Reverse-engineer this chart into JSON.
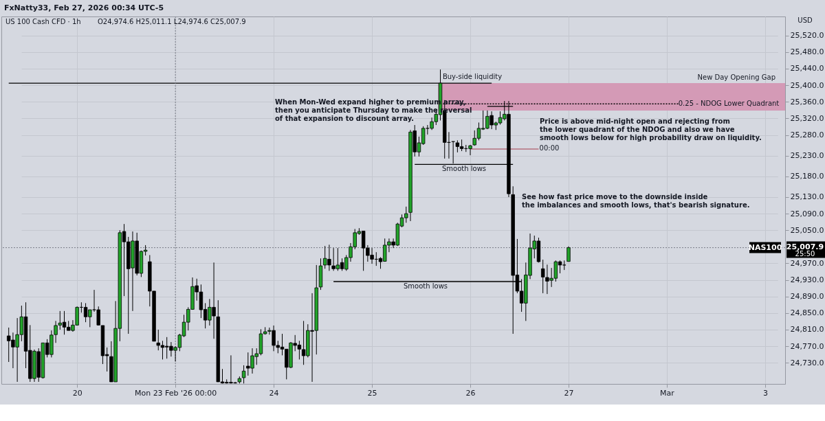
{
  "chart_data": {
    "type": "candlestick",
    "title": "US 100 Cash CFD · 1h",
    "subtitle": "O24,974.6 H25,011.1 L24,974.6 C25,007.9",
    "categories": [
      null,
      null,
      null,
      null,
      null,
      null,
      null,
      null,
      null,
      null,
      null,
      null,
      null,
      null,
      null,
      null,
      "20",
      null,
      null,
      null,
      null,
      null,
      null,
      null,
      null,
      null,
      null,
      null,
      null,
      null,
      null,
      null,
      null,
      null,
      null,
      null,
      null,
      null,
      null,
      "Mon 23 Feb '26  00:00",
      null,
      null,
      null,
      null,
      null,
      null,
      null,
      null,
      null,
      null,
      null,
      null,
      null,
      null,
      null,
      null,
      null,
      null,
      null,
      null,
      null,
      null,
      "24",
      null,
      null,
      null,
      null,
      null,
      null,
      null,
      null,
      null,
      null,
      null,
      null,
      null,
      null,
      null,
      null,
      null,
      null,
      null,
      null,
      null,
      null,
      "25",
      null,
      null,
      null,
      null,
      null,
      null,
      null,
      null,
      null,
      null,
      null,
      null,
      null,
      null,
      null,
      null,
      null,
      null,
      null,
      null,
      null,
      null,
      "26",
      null,
      null,
      null,
      null,
      null,
      null,
      null,
      null,
      null,
      null,
      null,
      null,
      null,
      null,
      null,
      null,
      null,
      null,
      null,
      null,
      null,
      null,
      "27",
      null,
      null,
      null,
      null,
      null,
      null,
      null,
      null,
      null,
      null,
      null,
      null,
      null,
      null,
      null,
      null,
      null,
      null,
      null,
      null,
      null,
      null,
      "Mar",
      null,
      null,
      null,
      null,
      null,
      null,
      null,
      null,
      null,
      null,
      null,
      null,
      null,
      null,
      null,
      null,
      null,
      null,
      null,
      null,
      null,
      null,
      "3"
    ],
    "ohlc": [
      [
        24795,
        24815,
        24732,
        24783
      ],
      [
        24785,
        24803,
        24717,
        24768
      ],
      [
        24768,
        24838,
        24684,
        24798
      ],
      [
        24798,
        24868,
        24782,
        24841
      ],
      [
        24841,
        24876,
        24717,
        24758
      ],
      [
        24760,
        24821,
        24684,
        24692
      ],
      [
        24692,
        24762,
        24684,
        24758
      ],
      [
        24757,
        24765,
        24684,
        24695
      ],
      [
        24694,
        24778,
        24692,
        24778
      ],
      [
        24778,
        24787,
        24743,
        24750
      ],
      [
        24750,
        24808,
        24743,
        24797
      ],
      [
        24798,
        24831,
        24778,
        24820
      ],
      [
        24821,
        24855,
        24810,
        24826
      ],
      [
        24828,
        24855,
        24798,
        24816
      ],
      [
        24816,
        24831,
        24808,
        24808
      ],
      [
        24808,
        24833,
        24805,
        24821
      ],
      [
        24821,
        24866,
        24820,
        24864
      ],
      [
        24864,
        24876,
        24851,
        24864
      ],
      [
        24864,
        24874,
        24828,
        24841
      ],
      [
        24841,
        24858,
        24816,
        24858
      ],
      [
        24858,
        24906,
        24853,
        24858
      ],
      [
        24858,
        24866,
        24820,
        24821
      ],
      [
        24820,
        24820,
        24727,
        24747
      ],
      [
        24750,
        24767,
        24709,
        24747
      ],
      [
        24745,
        24782,
        24684,
        24684
      ],
      [
        24684,
        24879,
        24684,
        24813
      ],
      [
        24813,
        25050,
        24782,
        25044
      ],
      [
        25047,
        25065,
        24891,
        25022
      ],
      [
        25022,
        25034,
        24800,
        24957
      ],
      [
        24959,
        25047,
        24855,
        25024
      ],
      [
        25024,
        25044,
        24941,
        24946
      ],
      [
        24946,
        25001,
        24937,
        24999
      ],
      [
        24999,
        25014,
        24989,
        25002
      ],
      [
        24974,
        24990,
        24866,
        24903
      ],
      [
        24903,
        24903,
        24782,
        24782
      ],
      [
        24778,
        24810,
        24760,
        24772
      ],
      [
        24772,
        24783,
        24738,
        24767
      ],
      [
        24770,
        24792,
        24740,
        24768
      ],
      [
        24770,
        24780,
        24745,
        24760
      ],
      [
        24760,
        24770,
        24733,
        24767
      ],
      [
        24767,
        24800,
        24758,
        24797
      ],
      [
        24795,
        24846,
        24792,
        24828
      ],
      [
        24828,
        24864,
        24808,
        24859
      ],
      [
        24859,
        24936,
        24858,
        24914
      ],
      [
        24916,
        24933,
        24880,
        24901
      ],
      [
        24901,
        24919,
        24838,
        24858
      ],
      [
        24859,
        24874,
        24813,
        24833
      ],
      [
        24833,
        24884,
        24820,
        24864
      ],
      [
        24864,
        24972,
        24788,
        24843
      ],
      [
        24841,
        24881,
        24684,
        24684
      ],
      [
        24684,
        24715,
        24680,
        24681
      ],
      [
        24683,
        24690,
        24680,
        24681
      ],
      [
        24683,
        24748,
        24680,
        24681
      ],
      [
        24682,
        24684,
        24680,
        24681
      ],
      [
        24684,
        24697,
        24680,
        24692
      ],
      [
        24694,
        24724,
        24680,
        24710
      ],
      [
        24722,
        24755,
        24699,
        24717
      ],
      [
        24717,
        24765,
        24704,
        24747
      ],
      [
        24745,
        24765,
        24725,
        24752
      ],
      [
        24752,
        24811,
        24748,
        24800
      ],
      [
        24800,
        24816,
        24798,
        24805
      ],
      [
        24806,
        24815,
        24798,
        24808
      ],
      [
        24808,
        24820,
        24758,
        24772
      ],
      [
        24772,
        24783,
        24753,
        24767
      ],
      [
        24768,
        24800,
        24748,
        24763
      ],
      [
        24763,
        24763,
        24690,
        24719
      ],
      [
        24719,
        24780,
        24717,
        24778
      ],
      [
        24777,
        24797,
        24758,
        24772
      ],
      [
        24773,
        24783,
        24738,
        24763
      ],
      [
        24762,
        24831,
        24725,
        24747
      ],
      [
        24747,
        24823,
        24743,
        24808
      ],
      [
        24808,
        24898,
        24684,
        24806
      ],
      [
        24808,
        24966,
        24750,
        24911
      ],
      [
        24913,
        24982,
        24906,
        24964
      ],
      [
        24966,
        25012,
        24957,
        24982
      ],
      [
        24980,
        25015,
        24952,
        24966
      ],
      [
        24964,
        25007,
        24952,
        24957
      ],
      [
        24957,
        25007,
        24952,
        24966
      ],
      [
        24972,
        24982,
        24952,
        24957
      ],
      [
        24956,
        24990,
        24952,
        24984
      ],
      [
        24984,
        25019,
        24974,
        25010
      ],
      [
        25010,
        25053,
        25004,
        25044
      ],
      [
        25042,
        25055,
        25039,
        25047
      ],
      [
        25048,
        25048,
        24952,
        25007
      ],
      [
        25007,
        25014,
        24974,
        24989
      ],
      [
        24990,
        25007,
        24969,
        24980
      ],
      [
        24980,
        24997,
        24964,
        24980
      ],
      [
        24982,
        24985,
        24957,
        24974
      ],
      [
        24975,
        25030,
        24974,
        25014
      ],
      [
        25014,
        25030,
        24997,
        25022
      ],
      [
        25022,
        25030,
        25007,
        25014
      ],
      [
        25014,
        25068,
        25012,
        25065
      ],
      [
        25060,
        25088,
        25057,
        25080
      ],
      [
        25080,
        25107,
        25068,
        25090
      ],
      [
        25093,
        25292,
        25072,
        25287
      ],
      [
        25290,
        25304,
        25228,
        25239
      ],
      [
        25239,
        25276,
        25228,
        25261
      ],
      [
        25259,
        25301,
        25256,
        25296
      ],
      [
        25296,
        25304,
        25281,
        25296
      ],
      [
        25296,
        25322,
        25292,
        25312
      ],
      [
        25312,
        25342,
        25304,
        25330
      ],
      [
        25329,
        25438,
        25315,
        25405
      ],
      [
        25339,
        25364,
        25223,
        25262
      ],
      [
        25262,
        25287,
        25223,
        25262
      ],
      [
        25264,
        25264,
        25211,
        25264
      ],
      [
        25261,
        25267,
        25238,
        25252
      ],
      [
        25252,
        25269,
        25241,
        25247
      ],
      [
        25247,
        25256,
        25239,
        25247
      ],
      [
        25247,
        25256,
        25231,
        25254
      ],
      [
        25256,
        25291,
        25254,
        25272
      ],
      [
        25272,
        25310,
        25267,
        25296
      ],
      [
        25294,
        25339,
        25292,
        25296
      ],
      [
        25296,
        25339,
        25294,
        25325
      ],
      [
        25327,
        25337,
        25294,
        25304
      ],
      [
        25304,
        25312,
        25292,
        25309
      ],
      [
        25309,
        25337,
        25305,
        25322
      ],
      [
        25319,
        25362,
        25315,
        25330
      ],
      [
        25330,
        25362,
        25130,
        25138
      ],
      [
        25136,
        25156,
        24800,
        24941
      ],
      [
        24942,
        25029,
        24898,
        24903
      ],
      [
        24903,
        24932,
        24853,
        24874
      ],
      [
        24874,
        24972,
        24831,
        24942
      ],
      [
        24941,
        25042,
        24932,
        25007
      ],
      [
        25005,
        25037,
        24982,
        25024
      ],
      [
        25024,
        25032,
        24972,
        24974
      ],
      [
        24957,
        24979,
        24898,
        24937
      ],
      [
        24936,
        24967,
        24896,
        24927
      ],
      [
        24929,
        24959,
        24913,
        24934
      ],
      [
        24934,
        24977,
        24926,
        24974
      ],
      [
        24974,
        24977,
        24946,
        24966
      ],
      [
        24966,
        24977,
        24954,
        24966
      ],
      [
        24974.6,
        25011.1,
        24974.6,
        25007.9
      ],
      null,
      null,
      null,
      null,
      null,
      null,
      null,
      null,
      null,
      null,
      null,
      null,
      null,
      null,
      null,
      null,
      null,
      null,
      null,
      null,
      null,
      null,
      null,
      null,
      null,
      null,
      null,
      null,
      null,
      null,
      null,
      null,
      null,
      null,
      null,
      null,
      null,
      null,
      null,
      null,
      null,
      null,
      null,
      null,
      null,
      null
    ],
    "colors": [
      "#000000",
      "#000000",
      "#22a32a",
      "#22a32a",
      "#000000",
      "#000000",
      "#22a32a",
      "#000000",
      "#22a32a",
      "#000000",
      "#22a32a",
      "#22a32a",
      "#22a32a",
      "#000000",
      "#000000",
      "#22a32a",
      "#22a32a",
      "#000000",
      "#000000",
      "#22a32a",
      "#000000",
      "#000000",
      "#000000",
      "#000000",
      "#000000",
      "#22a32a",
      "#22a32a",
      "#000000",
      "#000000",
      "#22a32a",
      "#000000",
      "#22a32a",
      "#22a32a",
      "#000000",
      "#000000",
      "#000000",
      "#000000",
      "#000000",
      "#000000",
      "#22a32a",
      "#22a32a",
      "#22a32a",
      "#22a32a",
      "#22a32a",
      "#000000",
      "#000000",
      "#000000",
      "#22a32a",
      "#000000",
      "#000000",
      "#000000",
      "#000000",
      "#000000",
      "#000000",
      "#22a32a",
      "#22a32a",
      "#000000",
      "#22a32a",
      "#22a32a",
      "#22a32a",
      "#22a32a",
      "#22a32a",
      "#000000",
      "#000000",
      "#000000",
      "#000000",
      "#22a32a",
      "#000000",
      "#000000",
      "#000000",
      "#22a32a",
      "#000000",
      "#22a32a",
      "#22a32a",
      "#22a32a",
      "#000000",
      "#000000",
      "#22a32a",
      "#000000",
      "#22a32a",
      "#22a32a",
      "#22a32a",
      "#22a32a",
      "#000000",
      "#000000",
      "#000000",
      "#000000",
      "#000000",
      "#22a32a",
      "#22a32a",
      "#000000",
      "#22a32a",
      "#22a32a",
      "#22a32a",
      "#22a32a",
      "#000000",
      "#22a32a",
      "#22a32a",
      "#000000",
      "#22a32a",
      "#22a32a",
      "#22a32a",
      "#000000",
      "#000000",
      "#000000",
      "#000000",
      "#000000",
      "#000000",
      "#22a32a",
      "#22a32a",
      "#22a32a",
      "#22a32a",
      "#22a32a",
      "#000000",
      "#22a32a",
      "#22a32a",
      "#22a32a",
      "#000000",
      "#000000",
      "#000000",
      "#000000",
      "#22a32a",
      "#22a32a",
      "#22a32a",
      "#000000",
      "#000000",
      "#000000",
      "#22a32a",
      "#22a32a",
      "#000000",
      "#000000",
      "#22a32a",
      null,
      null,
      null,
      null,
      null,
      null,
      null,
      null,
      null,
      null,
      null,
      null,
      null,
      null,
      null,
      null,
      null,
      null,
      null,
      null,
      null,
      null,
      null,
      null,
      null,
      null,
      null,
      null,
      null,
      null,
      null,
      null,
      null,
      null,
      null,
      null,
      null,
      null,
      null,
      null,
      null,
      null,
      null,
      null,
      null,
      null
    ],
    "series": [
      {
        "type": "line",
        "color": "#000000",
        "line_style": "solid",
        "values": [
          25405,
          25405,
          25405,
          25405,
          25405,
          25405,
          25405,
          25405,
          25405,
          25405,
          25405,
          25405,
          25405,
          25405,
          25405,
          25405,
          25405,
          25405,
          25405,
          25405,
          25405,
          25405,
          25405,
          25405,
          25405,
          25405,
          25405,
          25405,
          25405,
          25405,
          25405,
          25405,
          25405,
          25405,
          25405,
          25405,
          25405,
          25405,
          25405,
          25405,
          25405,
          25405,
          25405,
          25405,
          25405,
          25405,
          25405,
          25405,
          25405,
          25405,
          25405,
          25405,
          25405,
          25405,
          25405,
          25405,
          25405,
          25405,
          25405,
          25405,
          25405,
          25405,
          25405,
          25405,
          25405,
          25405,
          25405,
          25405,
          25405,
          25405,
          25405,
          25405,
          25405,
          25405,
          25405,
          25405,
          25405,
          25405,
          25405,
          25405,
          25405,
          25405,
          25405,
          25405,
          25405,
          25405,
          25405,
          25405,
          25405,
          25405,
          25405,
          25405,
          25405,
          25405,
          25405,
          25405,
          25405,
          25405,
          25405,
          25405,
          25405,
          25405,
          25405,
          25405,
          25405,
          25405,
          25405,
          25405,
          25405,
          25405,
          25405,
          25405,
          25405,
          25405,
          null,
          null,
          null,
          null,
          null,
          null,
          null,
          null,
          null,
          null,
          null,
          null,
          null,
          null,
          null,
          null,
          null,
          null,
          null,
          null,
          null,
          null,
          null,
          null,
          null,
          null,
          null,
          null,
          null,
          null,
          null,
          null,
          null,
          null,
          null,
          null,
          null,
          null,
          null,
          null,
          null,
          null,
          null,
          null,
          null,
          null,
          null,
          null,
          null,
          null,
          null,
          null,
          null,
          null,
          null,
          null,
          null,
          null,
          null,
          null,
          null,
          null,
          null,
          null
        ]
      },
      {
        "type": "line",
        "color": "#000000",
        "line_style": "solid",
        "values": [
          null,
          null,
          null,
          null,
          null,
          null,
          null,
          null,
          null,
          null,
          null,
          null,
          null,
          null,
          null,
          null,
          null,
          null,
          null,
          null,
          null,
          null,
          null,
          null,
          null,
          null,
          null,
          null,
          null,
          null,
          null,
          null,
          null,
          null,
          null,
          null,
          null,
          null,
          null,
          null,
          null,
          null,
          null,
          null,
          null,
          null,
          null,
          null,
          null,
          null,
          null,
          null,
          null,
          null,
          null,
          null,
          null,
          null,
          null,
          null,
          null,
          null,
          null,
          null,
          null,
          null,
          null,
          null,
          null,
          null,
          null,
          null,
          null,
          null,
          null,
          null,
          null,
          null,
          null,
          null,
          null,
          null,
          null,
          null,
          null,
          null,
          null,
          null,
          null,
          null,
          null,
          null,
          null,
          null,
          null,
          25209,
          25209,
          25209,
          25209,
          25209,
          25209,
          25209,
          25209,
          25209,
          25209,
          25209,
          25209,
          25209,
          25209,
          25209,
          25209,
          25209,
          25209,
          25209,
          25209,
          25209,
          25209,
          25209,
          25209,
          null,
          null,
          null,
          null,
          null,
          null,
          null,
          null,
          null,
          null,
          null,
          null,
          null,
          null,
          null,
          null,
          null,
          null,
          null,
          null,
          null,
          null,
          null,
          null,
          null,
          null,
          null,
          null,
          null,
          null,
          null,
          null,
          null,
          null,
          null,
          null,
          null,
          null,
          null,
          null,
          null,
          null,
          null,
          null,
          null,
          null,
          null,
          null,
          null,
          null,
          null,
          null,
          null,
          null,
          null,
          null,
          null,
          null,
          null
        ]
      },
      {
        "type": "line",
        "color": "#000000",
        "line_style": "solid",
        "values": [
          null,
          null,
          null,
          null,
          null,
          null,
          null,
          null,
          null,
          null,
          null,
          null,
          null,
          null,
          null,
          null,
          null,
          null,
          null,
          null,
          null,
          null,
          null,
          null,
          null,
          null,
          null,
          null,
          null,
          null,
          null,
          null,
          null,
          null,
          null,
          null,
          null,
          null,
          null,
          null,
          null,
          null,
          null,
          null,
          null,
          null,
          null,
          null,
          null,
          null,
          null,
          null,
          null,
          null,
          null,
          null,
          null,
          null,
          null,
          null,
          null,
          null,
          null,
          null,
          null,
          null,
          null,
          null,
          null,
          null,
          null,
          null,
          null,
          null,
          null,
          null,
          24926,
          24926,
          24926,
          24926,
          24926,
          24926,
          24926,
          24926,
          24926,
          24926,
          24926,
          24926,
          24926,
          24926,
          24926,
          24926,
          24926,
          24926,
          24926,
          24926,
          24926,
          24926,
          24926,
          24926,
          24926,
          24926,
          24926,
          24926,
          24926,
          24926,
          24926,
          24926,
          24926,
          24926,
          24926,
          24926,
          24926,
          24926,
          24926,
          24926,
          24926,
          24926,
          24926,
          24926,
          24926,
          null,
          null,
          null,
          null,
          null,
          null,
          null,
          null,
          null,
          null,
          null,
          null,
          null,
          null,
          null,
          null,
          null,
          null,
          null,
          null,
          null,
          null,
          null,
          null,
          null,
          null,
          null,
          null,
          null,
          null,
          null,
          null,
          null,
          null,
          null,
          null,
          null,
          null,
          null,
          null,
          null,
          null,
          null,
          null,
          null,
          null,
          null,
          null,
          null,
          null,
          null,
          null,
          null,
          null,
          null,
          null,
          null
        ]
      },
      {
        "type": "line",
        "color": "#000000",
        "line_style": "solid",
        "values": [
          null,
          null,
          null,
          null,
          null,
          null,
          null,
          null,
          null,
          null,
          null,
          null,
          null,
          null,
          null,
          null,
          null,
          null,
          null,
          null,
          null,
          null,
          null,
          null,
          null,
          null,
          null,
          null,
          null,
          null,
          null,
          null,
          null,
          null,
          null,
          null,
          null,
          null,
          null,
          null,
          null,
          null,
          null,
          null,
          null,
          null,
          null,
          null,
          null,
          null,
          null,
          null,
          null,
          null,
          null,
          null,
          null,
          null,
          null,
          null,
          null,
          null,
          null,
          null,
          null,
          null,
          null,
          null,
          null,
          null,
          null,
          null,
          null,
          null,
          null,
          null,
          null,
          null,
          null,
          null,
          null,
          null,
          null,
          null,
          null,
          null,
          null,
          null,
          null,
          null,
          null,
          null,
          null,
          null,
          null,
          null,
          null,
          null,
          null,
          null,
          null,
          null,
          null,
          null,
          null,
          null,
          null,
          null,
          null,
          null,
          null,
          null,
          25349,
          25349,
          25349,
          25349,
          25349,
          25349,
          25349,
          null,
          null,
          null,
          null,
          null,
          null,
          null,
          null,
          null,
          null,
          null,
          null,
          null,
          null,
          null,
          null,
          null,
          null,
          null,
          null,
          null,
          null,
          null,
          null,
          null,
          null,
          null,
          null,
          null,
          null,
          null,
          null,
          null,
          null,
          null,
          null,
          null,
          null,
          null,
          null,
          null,
          null,
          null,
          null,
          null,
          null,
          null,
          null,
          null,
          null,
          null,
          null,
          null,
          null,
          null,
          null,
          null,
          null,
          null
        ]
      },
      {
        "type": "line",
        "color": "#b5707e",
        "line_style": "solid",
        "values": [
          null,
          null,
          null,
          null,
          null,
          null,
          null,
          null,
          null,
          null,
          null,
          null,
          null,
          null,
          null,
          null,
          null,
          null,
          null,
          null,
          null,
          null,
          null,
          null,
          null,
          null,
          null,
          null,
          null,
          null,
          null,
          null,
          null,
          null,
          null,
          null,
          null,
          null,
          null,
          null,
          null,
          null,
          null,
          null,
          null,
          null,
          null,
          null,
          null,
          null,
          null,
          null,
          null,
          null,
          null,
          null,
          null,
          null,
          null,
          null,
          null,
          null,
          null,
          null,
          null,
          null,
          null,
          null,
          null,
          null,
          null,
          null,
          null,
          null,
          null,
          null,
          null,
          null,
          null,
          null,
          null,
          null,
          null,
          null,
          null,
          null,
          null,
          null,
          null,
          null,
          null,
          null,
          null,
          null,
          null,
          null,
          null,
          null,
          null,
          null,
          null,
          null,
          null,
          null,
          null,
          null,
          null,
          null,
          25246,
          25246,
          25246,
          25246,
          25246,
          25246,
          25246,
          25246,
          25246,
          25246,
          25246,
          25246,
          25246,
          25246,
          25246,
          25246,
          25246,
          null,
          null,
          null,
          null,
          null,
          null,
          null,
          null,
          null,
          null,
          null,
          null,
          null,
          null,
          null,
          null,
          null,
          null,
          null,
          null,
          null,
          null,
          null,
          null,
          null,
          null,
          null,
          null,
          null,
          null,
          null,
          null,
          null,
          null,
          null,
          null,
          null,
          null,
          null,
          null,
          null,
          null,
          null,
          null,
          null,
          null,
          null,
          null,
          null,
          null,
          null,
          null,
          null
        ]
      },
      {
        "type": "line",
        "color": "#000000",
        "line_style": "dotted",
        "values": [
          null,
          null,
          null,
          null,
          null,
          null,
          null,
          null,
          null,
          null,
          null,
          null,
          null,
          null,
          null,
          null,
          null,
          null,
          null,
          null,
          null,
          null,
          null,
          null,
          null,
          null,
          null,
          null,
          null,
          null,
          null,
          null,
          null,
          null,
          null,
          null,
          null,
          null,
          null,
          null,
          null,
          null,
          null,
          null,
          null,
          null,
          null,
          null,
          null,
          null,
          null,
          null,
          null,
          null,
          null,
          null,
          null,
          null,
          null,
          null,
          null,
          null,
          null,
          null,
          null,
          null,
          null,
          null,
          null,
          null,
          null,
          null,
          null,
          null,
          null,
          null,
          null,
          null,
          null,
          null,
          null,
          null,
          null,
          null,
          null,
          null,
          null,
          null,
          null,
          null,
          null,
          null,
          null,
          null,
          null,
          null,
          null,
          null,
          null,
          null,
          null,
          25355,
          25355,
          25355,
          25355,
          25355,
          25355,
          25355,
          25355,
          25355,
          25355,
          25355,
          25355,
          25355,
          25355,
          25355,
          25355,
          25355,
          25355,
          25355,
          25355,
          25355,
          25355,
          25355,
          25355,
          25355,
          25355,
          25355,
          25355,
          25355,
          25355,
          25355,
          25355,
          25355,
          25355,
          25355,
          25355,
          25355,
          25355,
          25355,
          25355,
          25355,
          25355,
          25355,
          25355,
          25355,
          25355,
          25355,
          25355,
          25355,
          25355,
          25355,
          25355,
          25355,
          25355,
          25355,
          25355,
          25355,
          null,
          null,
          null,
          null,
          null,
          null,
          null,
          null,
          null,
          null,
          null,
          null,
          null,
          null,
          null,
          null,
          null,
          null,
          null,
          null
        ]
      }
    ],
    "bands": [
      {
        "axis": "y",
        "from": 25339,
        "to": 25405,
        "label": "New Day Opening Gap",
        "color": "#d49ab6"
      }
    ],
    "ref_lines": [
      {
        "axis": "x",
        "value": "Mon 23 Feb '26  00:00",
        "line_style": "dotted",
        "color": "#787b86"
      },
      {
        "axis": "y",
        "value": 25007.9,
        "label": "NAS100",
        "line_style": "dotted",
        "color": "#787b86"
      }
    ],
    "annotations": [
      "FxNatty33, Feb 27, 2026 00:34 UTC-5",
      "When Mon-Wed expand higher to premium array,\nthen you anticipate Thursday to make the reversal\nof that expansion to discount array.",
      "Price is above mid-night open and rejecting from\nthe lower quadrant of the NDOG and also we have\nsmooth lows below for high probability draw on liquidity.",
      "See how fast price move to the downside inside\nthe imbalances and smooth lows, that's bearish signature.",
      "USD",
      "25,007.9",
      "25:50",
      {
        "text": "Buy-side liquidity",
        "y": 25405
      },
      "Smooth lows",
      "Smooth lows",
      "00:00",
      "0.25 - NDOG Lower Quadrant"
    ],
    "ylim": [
      24679,
      25566
    ],
    "yticks": [
      {
        "value": 24730,
        "label": "24,730.0"
      },
      {
        "value": 24770,
        "label": "24,770.0"
      },
      {
        "value": 24810,
        "label": "24,810.0"
      },
      {
        "value": 24850,
        "label": "24,850.0"
      },
      {
        "value": 24890,
        "label": "24,890.0"
      },
      {
        "value": 24930,
        "label": "24,930.0"
      },
      {
        "value": 24970,
        "label": "24,970.0"
      },
      {
        "value": 25050,
        "label": "25,050.0"
      },
      {
        "value": 25090,
        "label": "25,090.0"
      },
      {
        "value": 25130,
        "label": "25,130.0"
      },
      {
        "value": 25180,
        "label": "25,180.0"
      },
      {
        "value": 25230,
        "label": "25,230.0"
      },
      {
        "value": 25280,
        "label": "25,280.0"
      },
      {
        "value": 25320,
        "label": "25,320.0"
      },
      {
        "value": 25360,
        "label": "25,360.0"
      },
      {
        "value": 25400,
        "label": "25,400.0"
      },
      {
        "value": 25440,
        "label": "25,440.0"
      },
      {
        "value": 25480,
        "label": "25,480.0"
      },
      {
        "value": 25520,
        "label": "25,520.0"
      }
    ],
    "grid": true
  }
}
